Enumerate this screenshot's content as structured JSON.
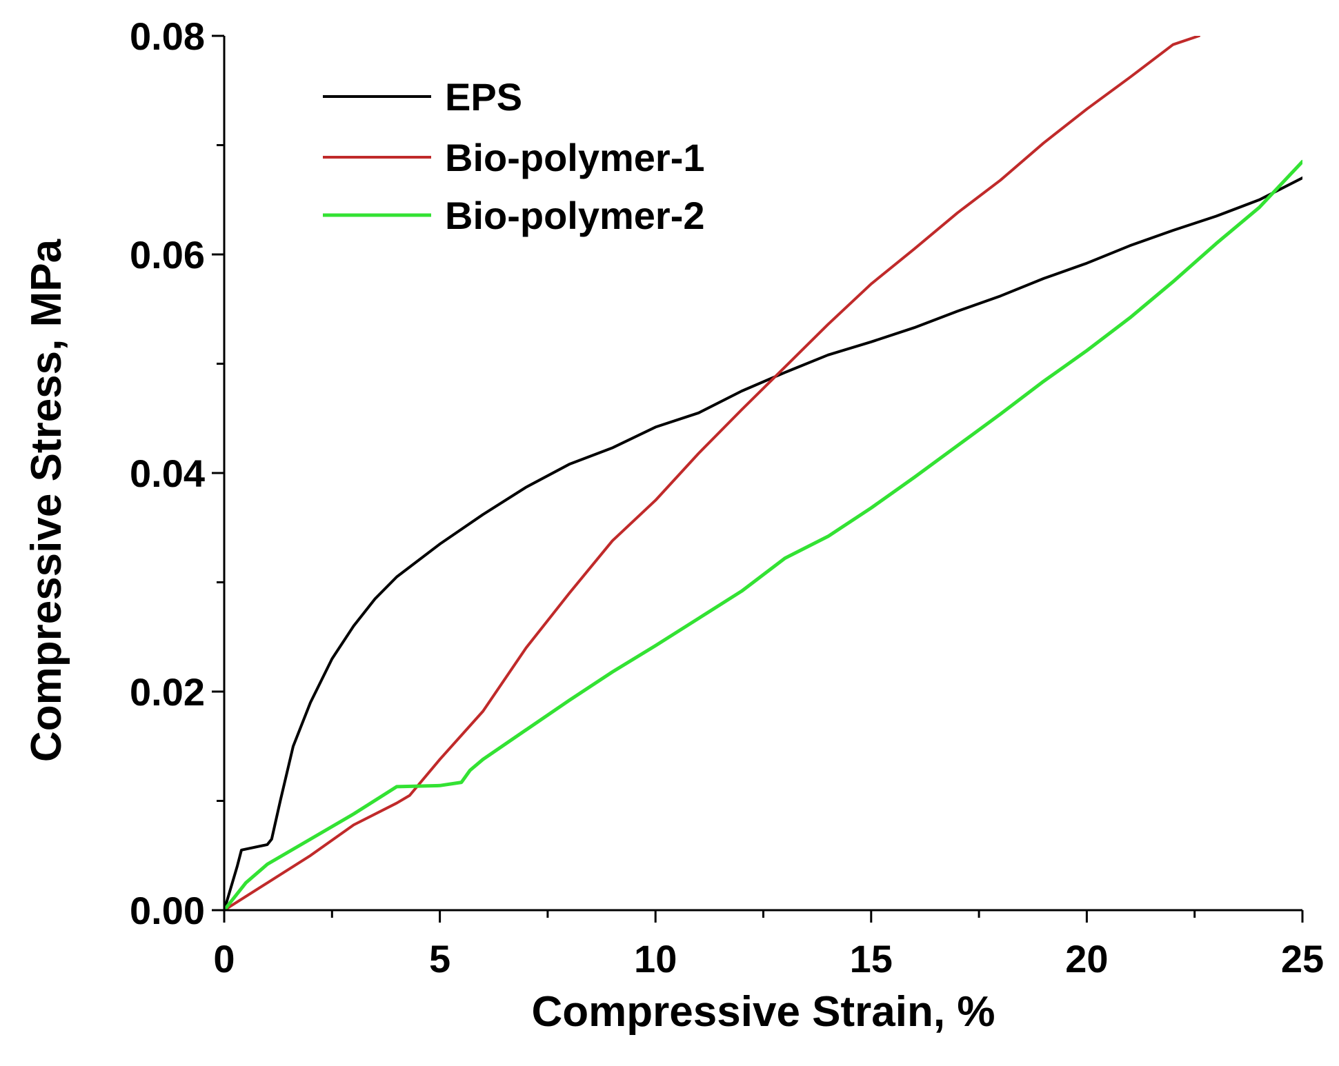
{
  "chart_data": {
    "type": "line",
    "title": "",
    "xlabel": "Compressive Strain, %",
    "ylabel": "Compressive Stress, MPa",
    "xlim": [
      0,
      25
    ],
    "ylim": [
      0,
      0.08
    ],
    "x_ticks": [
      0,
      5,
      10,
      15,
      20,
      25
    ],
    "x_tick_labels": [
      "0",
      "5",
      "10",
      "15",
      "20",
      "25"
    ],
    "y_ticks": [
      0,
      0.02,
      0.04,
      0.06,
      0.08
    ],
    "y_tick_labels": [
      "0.00",
      "0.02",
      "0.04",
      "0.06",
      "0.08"
    ],
    "grid": false,
    "legend_position": "top-left",
    "series": [
      {
        "name": "EPS",
        "color": "#000000",
        "x": [
          0,
          0.3,
          0.4,
          1.0,
          1.1,
          1.3,
          1.6,
          2.0,
          2.5,
          3.0,
          3.5,
          4.0,
          5.0,
          6.0,
          7.0,
          8.0,
          9.0,
          10.0,
          11.0,
          12.0,
          13.0,
          14.0,
          15.0,
          16.0,
          17.0,
          18.0,
          19.0,
          20.0,
          21.0,
          22.0,
          23.0,
          24.0,
          25.0
        ],
        "y": [
          0,
          0.004,
          0.0055,
          0.006,
          0.0065,
          0.01,
          0.015,
          0.019,
          0.023,
          0.026,
          0.0285,
          0.0305,
          0.0335,
          0.0362,
          0.0387,
          0.0408,
          0.0423,
          0.0442,
          0.0455,
          0.0475,
          0.0492,
          0.0508,
          0.052,
          0.0533,
          0.0548,
          0.0562,
          0.0578,
          0.0592,
          0.0608,
          0.0622,
          0.0635,
          0.065,
          0.067
        ]
      },
      {
        "name": "Bio-polymer-1",
        "color": "#c02a2a",
        "x": [
          0,
          1,
          2,
          3,
          4,
          4.3,
          5,
          6,
          7,
          8,
          9,
          10,
          11,
          12,
          13,
          14,
          15,
          16,
          17,
          18,
          19,
          20,
          21,
          22,
          22.6
        ],
        "y": [
          0,
          0.0025,
          0.005,
          0.0078,
          0.0098,
          0.0105,
          0.0138,
          0.0182,
          0.024,
          0.029,
          0.0338,
          0.0375,
          0.0418,
          0.0458,
          0.0497,
          0.0536,
          0.0573,
          0.0605,
          0.0638,
          0.0668,
          0.0702,
          0.0733,
          0.0762,
          0.0792,
          0.08
        ]
      },
      {
        "name": "Bio-polymer-2",
        "color": "#33e233",
        "x": [
          0,
          0.5,
          1.0,
          2.0,
          3.0,
          4.0,
          5.0,
          5.5,
          5.7,
          6.0,
          7.0,
          8.0,
          9.0,
          10.0,
          11.0,
          12.0,
          13.0,
          14.0,
          15.0,
          16.0,
          17.0,
          18.0,
          19.0,
          20.0,
          21.0,
          22.0,
          23.0,
          24.0,
          25.0
        ],
        "y": [
          0,
          0.0025,
          0.0042,
          0.0065,
          0.0088,
          0.0113,
          0.0114,
          0.0117,
          0.0128,
          0.0138,
          0.0165,
          0.0192,
          0.0218,
          0.0242,
          0.0267,
          0.0292,
          0.0322,
          0.0342,
          0.0368,
          0.0396,
          0.0425,
          0.0454,
          0.0484,
          0.0512,
          0.0542,
          0.0575,
          0.061,
          0.0643,
          0.0685
        ]
      }
    ]
  }
}
